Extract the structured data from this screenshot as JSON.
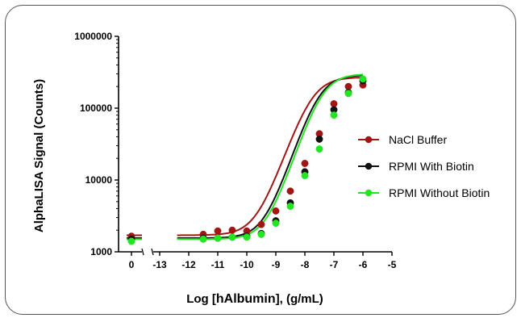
{
  "chart_data": {
    "type": "scatter",
    "ylabel": "AlphaLISA Signal (Counts)",
    "xlabel_prefix": "Log [",
    "xlabel_bold": "hAlbumin",
    "xlabel_suffix": "], (g/mL)",
    "y_scale": "log",
    "ylim": [
      1000,
      1000000
    ],
    "y_ticks": [
      1000,
      10000,
      100000,
      1000000
    ],
    "y_tick_labels": [
      "1000",
      "10000",
      "100000",
      "1000000"
    ],
    "x_break": true,
    "x_ticks": [
      0,
      -13,
      -12,
      -11,
      -10,
      -9,
      -8,
      -7,
      -6,
      -5
    ],
    "x_tick_labels": [
      "0",
      "-13",
      "-12",
      "-11",
      "-10",
      "-9",
      "-8",
      "-7",
      "-6",
      "-5"
    ],
    "xlim_main": [
      -13,
      -5
    ],
    "grid": false,
    "legend_position": "right",
    "series": [
      {
        "name": "NaCl Buffer",
        "color": "#a31515",
        "x": [
          0,
          -11.5,
          -11,
          -10.5,
          -10,
          -9.5,
          -9,
          -8.5,
          -8,
          -7.5,
          -7,
          -6.5,
          -6
        ],
        "y": [
          1650,
          1750,
          1950,
          2000,
          1950,
          2400,
          3700,
          7000,
          17000,
          44000,
          115000,
          200000,
          210000
        ],
        "fit": {
          "bottom": 1700,
          "top": 270000,
          "ec50": -7.75,
          "hill": 1.15
        }
      },
      {
        "name": "RPMI With Biotin",
        "color": "#111111",
        "x": [
          0,
          -11.5,
          -11,
          -10.5,
          -10,
          -9.5,
          -9,
          -8.5,
          -8,
          -7.5,
          -7,
          -6.5,
          -6
        ],
        "y": [
          1500,
          1550,
          1550,
          1600,
          1650,
          1800,
          2700,
          4800,
          13000,
          37000,
          95000,
          165000,
          240000
        ],
        "fit": {
          "bottom": 1550,
          "top": 290000,
          "ec50": -7.5,
          "hill": 1.2
        }
      },
      {
        "name": "RPMI Without Biotin",
        "color": "#22e622",
        "x": [
          0,
          -11.5,
          -11,
          -10.5,
          -10,
          -9.5,
          -9,
          -8.5,
          -8,
          -7.5,
          -7,
          -6.5,
          -6
        ],
        "y": [
          1400,
          1500,
          1550,
          1600,
          1600,
          1750,
          2500,
          4300,
          11500,
          27000,
          80000,
          160000,
          255000
        ],
        "fit": {
          "bottom": 1500,
          "top": 300000,
          "ec50": -7.4,
          "hill": 1.2
        }
      }
    ]
  }
}
